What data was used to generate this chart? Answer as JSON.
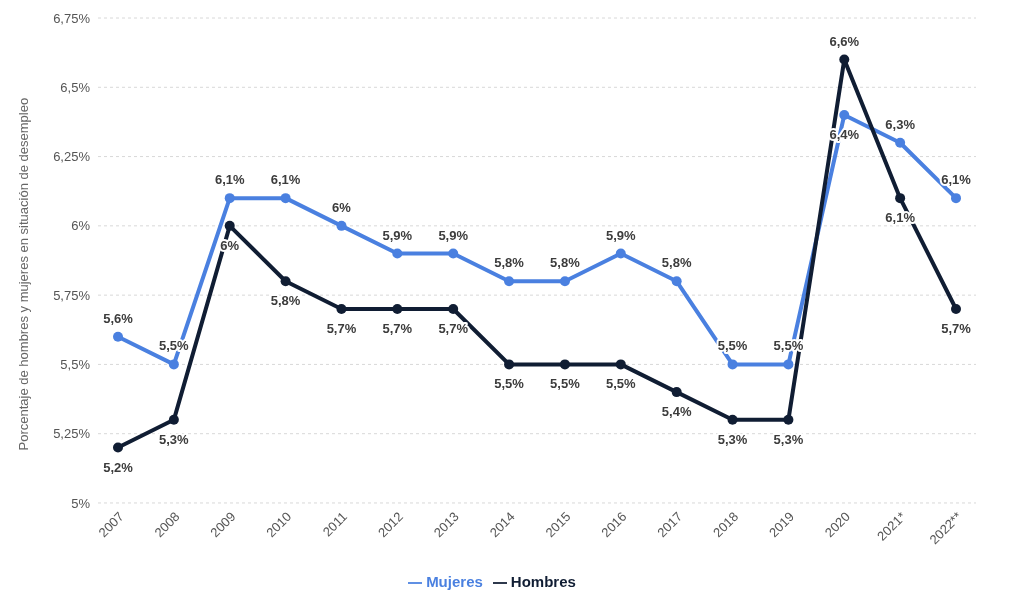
{
  "chart_data": {
    "type": "line",
    "categories": [
      "2007",
      "2008",
      "2009",
      "2010",
      "2011",
      "2012",
      "2013",
      "2014",
      "2015",
      "2016",
      "2017",
      "2018",
      "2019",
      "2020",
      "2021*",
      "2022**"
    ],
    "ylabel": "Porcentaje de hombres y mujeres en situación de desempleo",
    "ylim": [
      5,
      6.75
    ],
    "yticks": [
      {
        "value": 5,
        "label": "5%"
      },
      {
        "value": 5.25,
        "label": "5,25%"
      },
      {
        "value": 5.5,
        "label": "5,5%"
      },
      {
        "value": 5.75,
        "label": "5,75%"
      },
      {
        "value": 6,
        "label": "6%"
      },
      {
        "value": 6.25,
        "label": "6,25%"
      },
      {
        "value": 6.5,
        "label": "6,5%"
      },
      {
        "value": 6.75,
        "label": "6,75%"
      }
    ],
    "grid": "y",
    "legend": "bottom",
    "marker": "circle",
    "line_style": "solid",
    "series": [
      {
        "name": "Mujeres",
        "color": "#4a80e0",
        "values": [
          5.6,
          5.5,
          6.1,
          6.1,
          6.0,
          5.9,
          5.9,
          5.8,
          5.8,
          5.9,
          5.8,
          5.5,
          5.5,
          6.4,
          6.3,
          6.1
        ],
        "value_labels": [
          "5,6%",
          "5,5%",
          "6,1%",
          "6,1%",
          "6%",
          "5,9%",
          "5,9%",
          "5,8%",
          "5,8%",
          "5,9%",
          "5,8%",
          "5,5%",
          "5,5%",
          "6,4%",
          "6,3%",
          "6,1%"
        ]
      },
      {
        "name": "Hombres",
        "color": "#101d33",
        "values": [
          5.2,
          5.3,
          6.0,
          5.8,
          5.7,
          5.7,
          5.7,
          5.5,
          5.5,
          5.5,
          5.4,
          5.3,
          5.3,
          6.6,
          6.1,
          5.7
        ],
        "value_labels": [
          "5,2%",
          "5,3%",
          "6%",
          "5,8%",
          "5,7%",
          "5,7%",
          "5,7%",
          "5,5%",
          "5,5%",
          "5,5%",
          "5,4%",
          "5,3%",
          "5,3%",
          "6,6%",
          "6,1%",
          "5,7%"
        ]
      }
    ]
  }
}
